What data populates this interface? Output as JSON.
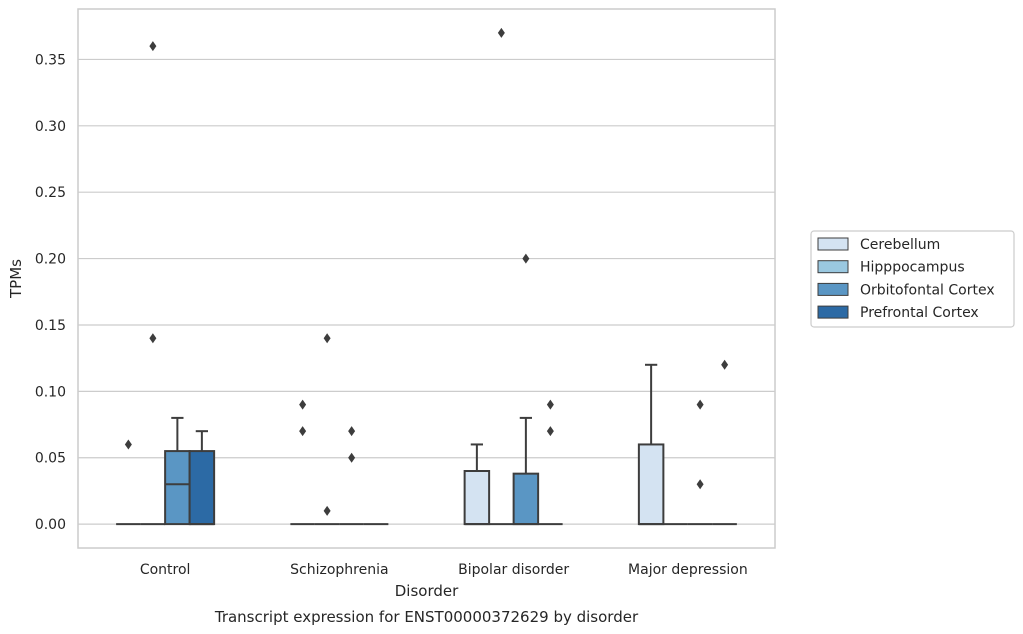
{
  "chart_data": {
    "type": "box",
    "title": "",
    "caption": "Transcript expression for ENST00000372629 by disorder",
    "xlabel": "Disorder",
    "ylabel": "TPMs",
    "ylim": [
      -0.018,
      0.388
    ],
    "yticks": [
      "0.00",
      "0.05",
      "0.10",
      "0.15",
      "0.20",
      "0.25",
      "0.30",
      "0.35"
    ],
    "grid": true,
    "legend_position": "right",
    "categories": [
      "Control",
      "Schizophrenia",
      "Bipolar disorder",
      "Major depression"
    ],
    "series": [
      {
        "name": "Cerebellum",
        "color": "#d4e3f2",
        "boxes": [
          {
            "q1": 0,
            "median": 0,
            "q3": 0,
            "whisker_low": 0,
            "whisker_high": 0,
            "outliers": [
              0.06
            ]
          },
          {
            "q1": 0,
            "median": 0,
            "q3": 0,
            "whisker_low": 0,
            "whisker_high": 0,
            "outliers": [
              0.07,
              0.09
            ]
          },
          {
            "q1": 0,
            "median": 0,
            "q3": 0.04,
            "whisker_low": 0,
            "whisker_high": 0.06,
            "outliers": []
          },
          {
            "q1": 0,
            "median": 0,
            "q3": 0.06,
            "whisker_low": 0,
            "whisker_high": 0.12,
            "outliers": []
          }
        ]
      },
      {
        "name": "Hipppocampus",
        "color": "#9ac8e0",
        "boxes": [
          {
            "q1": 0,
            "median": 0,
            "q3": 0,
            "whisker_low": 0,
            "whisker_high": 0,
            "outliers": [
              0.14,
              0.36
            ]
          },
          {
            "q1": 0,
            "median": 0,
            "q3": 0,
            "whisker_low": 0,
            "whisker_high": 0,
            "outliers": [
              0.01,
              0.14
            ]
          },
          {
            "q1": 0,
            "median": 0,
            "q3": 0,
            "whisker_low": 0,
            "whisker_high": 0,
            "outliers": [
              0.37
            ]
          },
          {
            "q1": 0,
            "median": 0,
            "q3": 0,
            "whisker_low": 0,
            "whisker_high": 0,
            "outliers": []
          }
        ]
      },
      {
        "name": "Orbitofontal Cortex",
        "color": "#5a96c4",
        "boxes": [
          {
            "q1": 0,
            "median": 0.03,
            "q3": 0.055,
            "whisker_low": 0,
            "whisker_high": 0.08,
            "outliers": []
          },
          {
            "q1": 0,
            "median": 0,
            "q3": 0,
            "whisker_low": 0,
            "whisker_high": 0,
            "outliers": [
              0.05,
              0.07
            ]
          },
          {
            "q1": 0,
            "median": 0,
            "q3": 0.038,
            "whisker_low": 0,
            "whisker_high": 0.08,
            "outliers": [
              0.2
            ]
          },
          {
            "q1": 0,
            "median": 0,
            "q3": 0,
            "whisker_low": 0,
            "whisker_high": 0,
            "outliers": [
              0.03,
              0.09
            ]
          }
        ]
      },
      {
        "name": "Prefrontal Cortex",
        "color": "#2c6aa5",
        "boxes": [
          {
            "q1": 0,
            "median": 0,
            "q3": 0.055,
            "whisker_low": 0,
            "whisker_high": 0.07,
            "outliers": []
          },
          {
            "q1": 0,
            "median": 0,
            "q3": 0,
            "whisker_low": 0,
            "whisker_high": 0,
            "outliers": []
          },
          {
            "q1": 0,
            "median": 0,
            "q3": 0,
            "whisker_low": 0,
            "whisker_high": 0,
            "outliers": [
              0.07,
              0.09
            ]
          },
          {
            "q1": 0,
            "median": 0,
            "q3": 0,
            "whisker_low": 0,
            "whisker_high": 0,
            "outliers": [
              0.12
            ]
          }
        ]
      }
    ]
  },
  "style": {
    "grid_color": "#cccccc",
    "spine_color": "#cccccc",
    "line_color": "#3d3d3d",
    "text_color": "#262626"
  }
}
